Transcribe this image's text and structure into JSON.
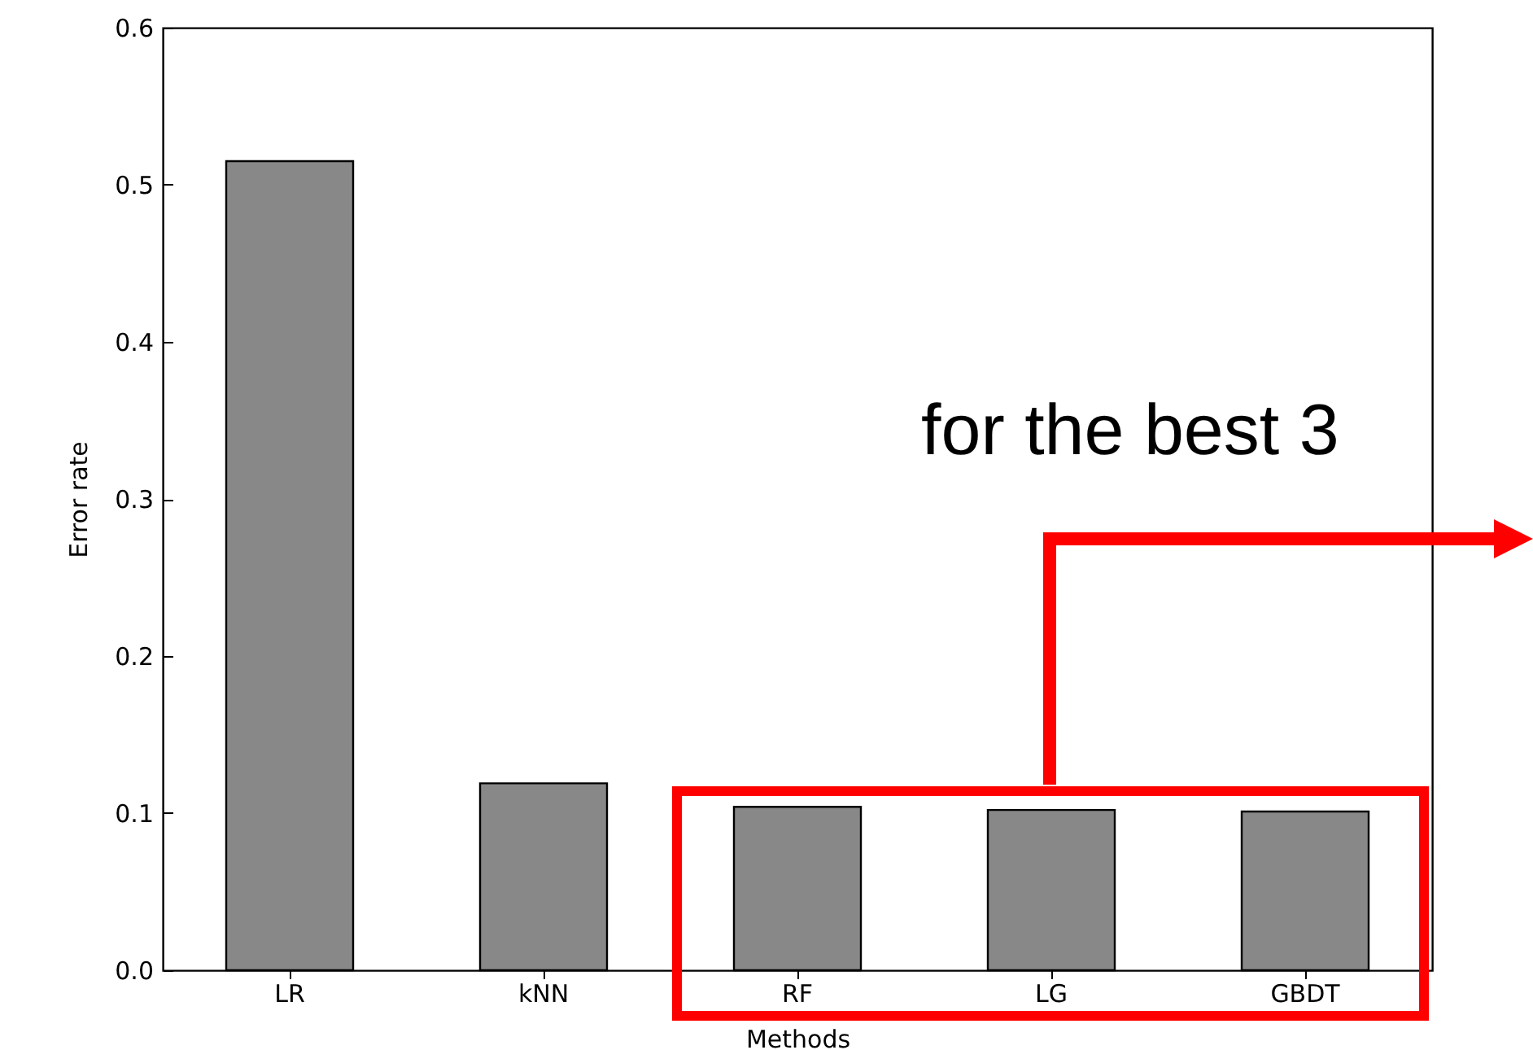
{
  "chart_data": {
    "type": "bar",
    "xlabel": "Methods",
    "ylabel": "Error rate",
    "categories": [
      "LR",
      "kNN",
      "RF",
      "LG",
      "GBDT"
    ],
    "values": [
      0.515,
      0.119,
      0.104,
      0.102,
      0.101
    ],
    "color": "#888888",
    "ylim": [
      0,
      0.6
    ],
    "yticks": [
      {
        "value": 0,
        "label": "0.0"
      },
      0.1,
      0.2,
      0.3,
      0.4,
      0.5,
      0.6
    ],
    "grid": false,
    "annotations": [
      "for the best 3"
    ]
  }
}
